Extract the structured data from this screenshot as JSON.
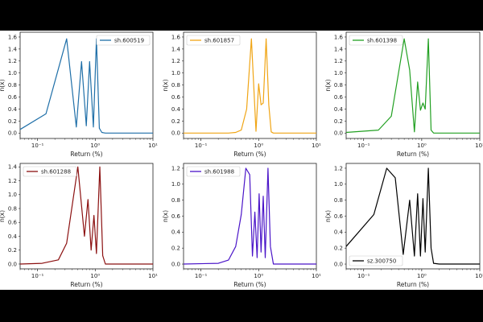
{
  "chart_data": [
    {
      "type": "line",
      "name": "sh.600519",
      "color": "#1f6fa8",
      "xscale": "log",
      "xlim": [
        0.05,
        10
      ],
      "ylim": [
        -0.09,
        1.68
      ],
      "xlabel": "Return (%)",
      "ylabel": "n(x)",
      "yticks": [
        "0.0",
        "0.2",
        "0.4",
        "0.6",
        "0.8",
        "1.0",
        "1.2",
        "1.4",
        "1.6"
      ],
      "yticks_values": [
        0,
        0.2,
        0.4,
        0.6,
        0.8,
        1.0,
        1.2,
        1.4,
        1.6
      ],
      "xtick_values": [
        0.1,
        1,
        10
      ],
      "xticks": [
        "10⁻¹",
        "10⁰",
        "10¹"
      ],
      "legend": "top-right",
      "x": [
        0.05,
        0.14,
        0.22,
        0.32,
        0.47,
        0.58,
        0.7,
        0.8,
        0.93,
        1.05,
        1.18,
        1.3,
        1.5,
        2.5,
        10
      ],
      "y": [
        0.06,
        0.32,
        1.0,
        1.57,
        0.1,
        1.19,
        0.12,
        1.19,
        0.1,
        1.57,
        0.08,
        0.01,
        0,
        0,
        0
      ]
    },
    {
      "type": "line",
      "name": "sh.601857",
      "color": "#f0a515",
      "xscale": "log",
      "xlim": [
        0.05,
        10
      ],
      "ylim": [
        -0.09,
        1.68
      ],
      "xlabel": "Return (%)",
      "ylabel": "n(x)",
      "yticks": [
        "0.0",
        "0.2",
        "0.4",
        "0.6",
        "0.8",
        "1.0",
        "1.2",
        "1.4",
        "1.6"
      ],
      "yticks_values": [
        0,
        0.2,
        0.4,
        0.6,
        0.8,
        1.0,
        1.2,
        1.4,
        1.6
      ],
      "xtick_values": [
        0.1,
        1,
        10
      ],
      "xticks": [
        "10⁻¹",
        "10⁰",
        "10¹"
      ],
      "legend": "top-left",
      "x": [
        0.05,
        0.3,
        0.4,
        0.5,
        0.62,
        0.75,
        0.9,
        1.0,
        1.1,
        1.2,
        1.35,
        1.5,
        1.65,
        1.8,
        2.2,
        10
      ],
      "y": [
        0,
        0,
        0.01,
        0.05,
        0.4,
        1.57,
        0.03,
        0.82,
        0.47,
        0.5,
        1.57,
        0.47,
        0.02,
        0,
        0,
        0
      ]
    },
    {
      "type": "line",
      "name": "sh.601398",
      "color": "#22a022",
      "xscale": "log",
      "xlim": [
        0.05,
        10
      ],
      "ylim": [
        -0.09,
        1.68
      ],
      "xlabel": "Return (%)",
      "ylabel": "n(x)",
      "yticks": [
        "0.0",
        "0.2",
        "0.4",
        "0.6",
        "0.8",
        "1.0",
        "1.2",
        "1.4",
        "1.6"
      ],
      "yticks_values": [
        0,
        0.2,
        0.4,
        0.6,
        0.8,
        1.0,
        1.2,
        1.4,
        1.6
      ],
      "xtick_values": [
        0.1,
        1,
        10
      ],
      "xticks": [
        "10⁻¹",
        "10⁰",
        "10¹"
      ],
      "legend": "top-left",
      "x": [
        0.05,
        0.18,
        0.3,
        0.5,
        0.62,
        0.75,
        0.85,
        0.95,
        1.05,
        1.15,
        1.3,
        1.45,
        1.6,
        2.0,
        10
      ],
      "y": [
        0.01,
        0.05,
        0.28,
        1.57,
        1.05,
        0.02,
        0.85,
        0.38,
        0.5,
        0.4,
        1.57,
        0.05,
        0,
        0,
        0
      ]
    },
    {
      "type": "line",
      "name": "sh.601288",
      "color": "#8b1010",
      "xscale": "log",
      "xlim": [
        0.05,
        10
      ],
      "ylim": [
        -0.07,
        1.45
      ],
      "xlabel": "Return (%)",
      "ylabel": "n(x)",
      "yticks": [
        "0.0",
        "0.2",
        "0.4",
        "0.6",
        "0.8",
        "1.0",
        "1.2",
        "1.4"
      ],
      "yticks_values": [
        0,
        0.2,
        0.4,
        0.6,
        0.8,
        1.0,
        1.2,
        1.4
      ],
      "xtick_values": [
        0.1,
        1,
        10
      ],
      "xticks": [
        "10⁻¹",
        "10⁰",
        "10¹"
      ],
      "legend": "top-left",
      "x": [
        0.05,
        0.12,
        0.23,
        0.32,
        0.5,
        0.65,
        0.75,
        0.85,
        0.95,
        1.05,
        1.2,
        1.35,
        1.5,
        2.0,
        10
      ],
      "y": [
        0,
        0.01,
        0.06,
        0.3,
        1.4,
        0.4,
        0.93,
        0.2,
        0.7,
        0.15,
        1.4,
        0.12,
        0,
        0,
        0
      ]
    },
    {
      "type": "line",
      "name": "sh.601988",
      "color": "#4a14c8",
      "xscale": "log",
      "xlim": [
        0.05,
        10
      ],
      "ylim": [
        -0.06,
        1.26
      ],
      "xlabel": "Return (%)",
      "ylabel": "n(x)",
      "yticks": [
        "0.0",
        "0.2",
        "0.4",
        "0.6",
        "0.8",
        "1.0",
        "1.2"
      ],
      "yticks_values": [
        0,
        0.2,
        0.4,
        0.6,
        0.8,
        1.0,
        1.2
      ],
      "xtick_values": [
        0.1,
        1,
        10
      ],
      "xticks": [
        "10⁻¹",
        "10⁰",
        "10¹"
      ],
      "legend": "top-left",
      "x": [
        0.05,
        0.2,
        0.3,
        0.4,
        0.5,
        0.6,
        0.7,
        0.78,
        0.86,
        0.94,
        1.02,
        1.1,
        1.2,
        1.3,
        1.45,
        1.6,
        1.8,
        2.5,
        10
      ],
      "y": [
        0,
        0.01,
        0.05,
        0.22,
        0.62,
        1.2,
        1.12,
        0.1,
        0.65,
        0.08,
        0.88,
        0.15,
        0.85,
        0.08,
        1.2,
        0.22,
        0,
        0,
        0
      ]
    },
    {
      "type": "line",
      "name": "sz.300750",
      "color": "#000000",
      "xscale": "log",
      "xlim": [
        0.05,
        10
      ],
      "ylim": [
        -0.06,
        1.26
      ],
      "xlabel": "Return (%)",
      "ylabel": "n(x)",
      "yticks": [
        "0.0",
        "0.2",
        "0.4",
        "0.6",
        "0.8",
        "1.0",
        "1.2"
      ],
      "yticks_values": [
        0,
        0.2,
        0.4,
        0.6,
        0.8,
        1.0,
        1.2
      ],
      "xtick_values": [
        0.1,
        1,
        10
      ],
      "xticks": [
        "10⁻¹",
        "10⁰",
        "10¹"
      ],
      "legend": "bottom-left",
      "x": [
        0.05,
        0.15,
        0.25,
        0.35,
        0.48,
        0.62,
        0.75,
        0.85,
        0.95,
        1.05,
        1.15,
        1.3,
        1.45,
        1.6,
        2.0,
        10
      ],
      "y": [
        0.22,
        0.62,
        1.2,
        1.08,
        0.12,
        0.8,
        0.1,
        0.88,
        0.1,
        0.82,
        0.15,
        1.2,
        0.2,
        0.01,
        0,
        0
      ]
    }
  ]
}
